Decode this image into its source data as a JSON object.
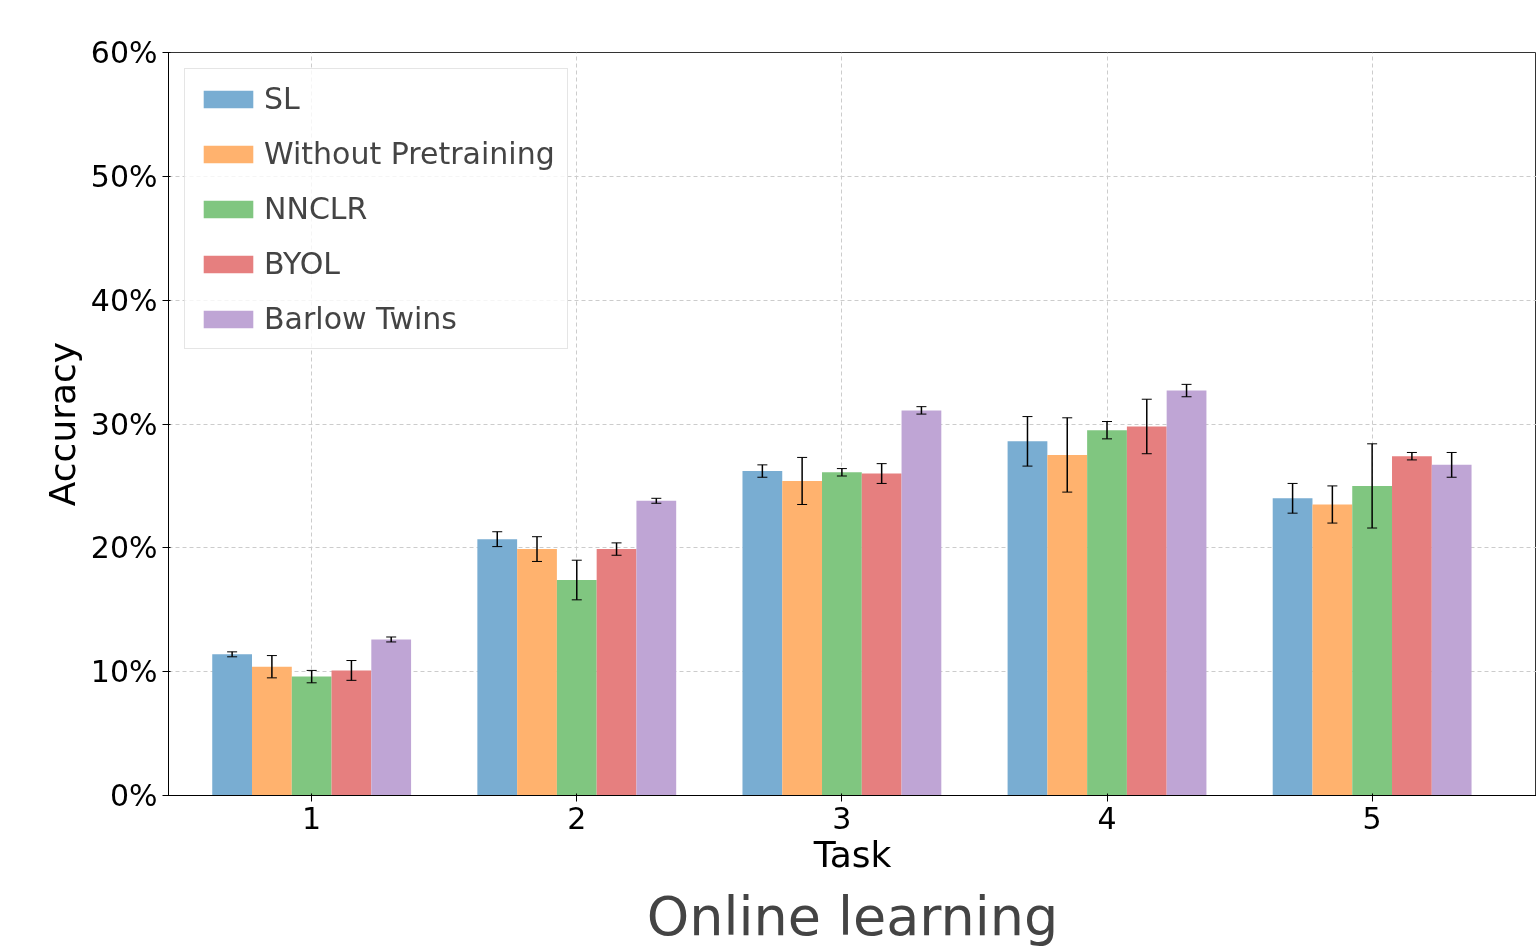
{
  "chart_data": {
    "type": "bar",
    "title": "Online learning",
    "xlabel": "Task",
    "ylabel": "Accuracy",
    "categories": [
      "1",
      "2",
      "3",
      "4",
      "5"
    ],
    "series": [
      {
        "name": "SL",
        "color": "#79add2",
        "values": [
          11.4,
          20.7,
          26.2,
          28.6,
          24.0
        ],
        "errors": [
          0.2,
          0.6,
          0.5,
          2.0,
          1.2
        ]
      },
      {
        "name": "Without Pretraining",
        "color": "#ffb26e",
        "values": [
          10.4,
          19.9,
          25.4,
          27.5,
          23.5
        ],
        "errors": [
          0.9,
          1.0,
          1.9,
          3.0,
          1.5
        ]
      },
      {
        "name": "NNCLR",
        "color": "#80c680",
        "values": [
          9.6,
          17.4,
          26.1,
          29.5,
          25.0
        ],
        "errors": [
          0.5,
          1.6,
          0.3,
          0.7,
          3.4
        ]
      },
      {
        "name": "BYOL",
        "color": "#e67f7f",
        "values": [
          10.1,
          19.9,
          26.0,
          29.8,
          27.4
        ],
        "errors": [
          0.8,
          0.5,
          0.8,
          2.2,
          0.3
        ]
      },
      {
        "name": "Barlow Twins",
        "color": "#bfa5d5",
        "values": [
          12.6,
          23.8,
          31.1,
          32.7,
          26.7
        ],
        "errors": [
          0.2,
          0.2,
          0.3,
          0.5,
          1.0
        ]
      }
    ],
    "ylim": [
      0,
      60
    ],
    "yticks": [
      {
        "value": 0,
        "label": "0%"
      },
      {
        "value": 10,
        "label": "10%"
      },
      {
        "value": 20,
        "label": "20%"
      },
      {
        "value": 30,
        "label": "30%"
      },
      {
        "value": 40,
        "label": "40%"
      },
      {
        "value": 50,
        "label": "50%"
      },
      {
        "value": 60,
        "label": "60%"
      }
    ],
    "grid": true,
    "legend": "top left"
  }
}
